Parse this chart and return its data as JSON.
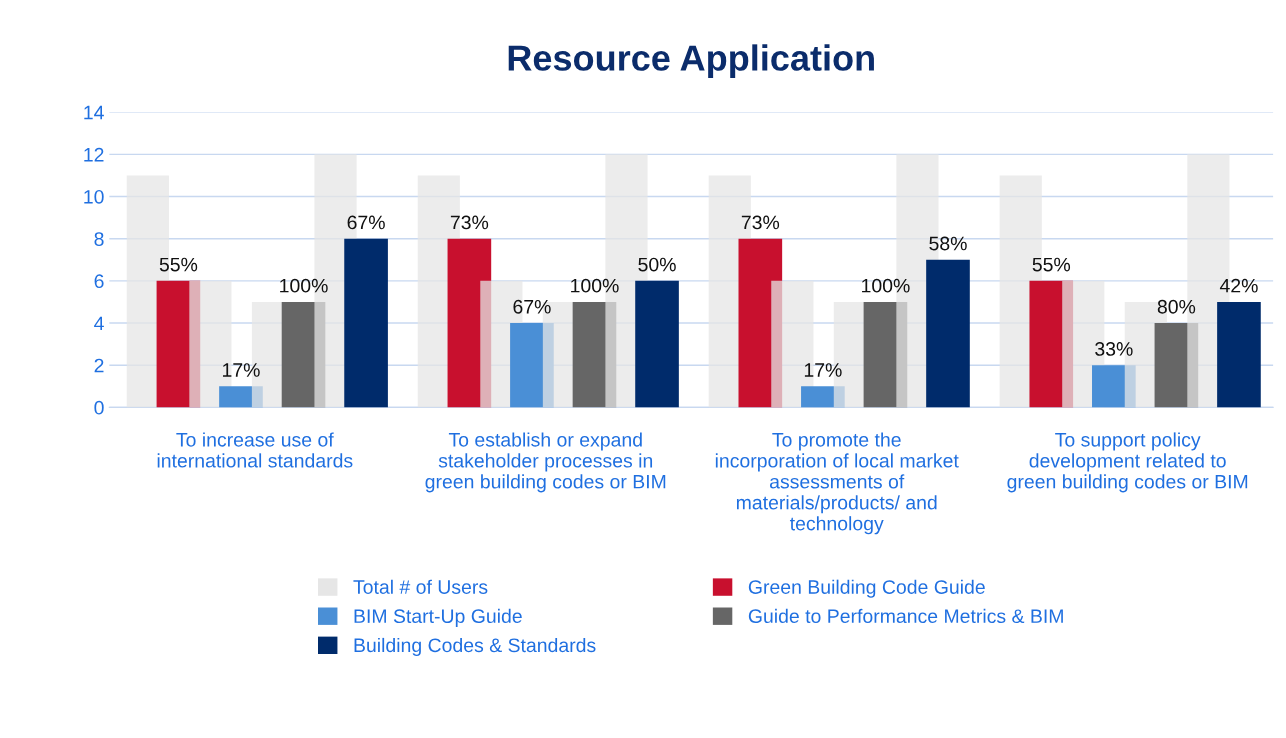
{
  "chart_data": {
    "type": "bar",
    "title": "Resource Application",
    "categories": [
      "To increase use of\ninternational standards",
      "To establish or expand\nstakeholder processes in\ngreen building codes or BIM",
      "To promote the\nincorporation of local market\nassessments of\nmaterials/products/ and\ntechnology",
      "To support policy\ndevelopment related to\ngreen building codes or BIM"
    ],
    "series": [
      {
        "name": "Total # of Users",
        "color": "#e6e6e6",
        "values": [
          11,
          11,
          11,
          11
        ]
      },
      {
        "name": "Green Building Code Guide",
        "color": "#c8102e",
        "values": [
          6,
          8,
          8,
          6
        ]
      },
      {
        "color": "#e6e6e6",
        "values": [
          6,
          6,
          6,
          6
        ]
      },
      {
        "name": "BIM Start-Up Guide",
        "color": "#4a8fd6",
        "values": [
          1,
          4,
          1,
          2
        ]
      },
      {
        "color": "#e6e6e6",
        "values": [
          5,
          5,
          5,
          5
        ]
      },
      {
        "name": "Guide to Performance Metrics & BIM",
        "color": "#666666",
        "values": [
          5,
          5,
          5,
          4
        ]
      },
      {
        "color": "#e6e6e6",
        "values": [
          12,
          12,
          12,
          12
        ]
      },
      {
        "name": "Building Codes & Standards",
        "color": "#002b6b",
        "values": [
          8,
          6,
          7,
          5
        ]
      }
    ],
    "annotations": [
      "55%",
      "73%",
      "73%",
      "55%",
      "17%",
      "67%",
      "17%",
      "33%",
      "100%",
      "100%",
      "100%",
      "80%",
      "67%",
      "50%",
      "58%",
      "42%"
    ],
    "ylim": [
      0,
      14
    ],
    "yticks": [
      0,
      2,
      4,
      6,
      8,
      10,
      12,
      14
    ],
    "grid": "y",
    "legend": "bottom"
  }
}
